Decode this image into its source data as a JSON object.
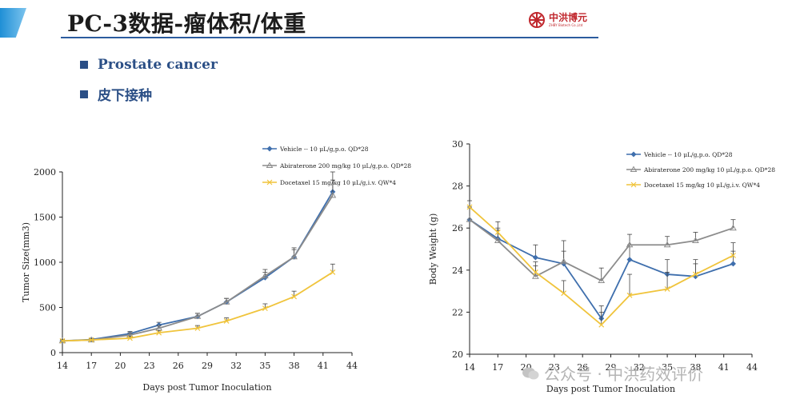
{
  "slide": {
    "title": "PC-3数据-瘤体积/体重",
    "logo_name": "中洪博元",
    "logo_sub": "ZHBY Biotech Co.,Ltd",
    "bullets": [
      "Prostate cancer",
      "皮下接种"
    ],
    "watermark": "公众号 · 中洪药效评价"
  },
  "colors": {
    "vehicle": "#3f6fad",
    "abiraterone": "#8c8c8c",
    "docetaxel": "#f0c43c",
    "title_rule": "#2b5c9e",
    "bullet": "#2b4f86"
  },
  "chart_data": [
    {
      "type": "line",
      "title": "",
      "xlabel": "Days post Tumor Inoculation",
      "ylabel": "Tumor Size(mm3)",
      "xlim": [
        14,
        44
      ],
      "ylim": [
        0,
        2000
      ],
      "xticks": [
        14,
        17,
        20,
        23,
        26,
        29,
        32,
        35,
        38,
        41,
        44
      ],
      "yticks": [
        0,
        500,
        1000,
        1500,
        2000
      ],
      "legend_position": "top-right",
      "series": [
        {
          "name": "Vehicle -- 10 μL/g,p.o. QD*28",
          "key": "vehicle",
          "marker": "diamond",
          "x": [
            14,
            17,
            21,
            24,
            28,
            31,
            35,
            38,
            42
          ],
          "y": [
            130,
            145,
            210,
            305,
            400,
            560,
            830,
            1060,
            1780
          ],
          "err": [
            15,
            15,
            25,
            30,
            35,
            40,
            60,
            80,
            220
          ]
        },
        {
          "name": "Abiraterone 200 mg/kg 10 μL/g,p.o. QD*28",
          "key": "abiraterone",
          "marker": "triangle",
          "x": [
            14,
            17,
            21,
            24,
            28,
            31,
            35,
            38,
            42
          ],
          "y": [
            130,
            140,
            195,
            270,
            400,
            560,
            850,
            1060,
            1740
          ],
          "err": [
            15,
            15,
            25,
            30,
            35,
            40,
            70,
            100,
            170
          ]
        },
        {
          "name": "Docetaxel 15 mg/kg 10 μL/g,i.v. QW*4",
          "key": "docetaxel",
          "marker": "x",
          "x": [
            14,
            17,
            21,
            24,
            28,
            31,
            35,
            38,
            42
          ],
          "y": [
            130,
            140,
            160,
            220,
            270,
            350,
            490,
            620,
            890
          ],
          "err": [
            15,
            15,
            20,
            25,
            30,
            35,
            50,
            60,
            90
          ]
        }
      ]
    },
    {
      "type": "line",
      "title": "",
      "xlabel": "Days post Tumor Inoculation",
      "ylabel": "Body Weight (g)",
      "xlim": [
        14,
        44
      ],
      "ylim": [
        20,
        30
      ],
      "xticks": [
        14,
        17,
        20,
        23,
        26,
        29,
        32,
        35,
        38,
        41,
        44
      ],
      "yticks": [
        20,
        22,
        24,
        26,
        28,
        30
      ],
      "legend_position": "top-right",
      "series": [
        {
          "name": "Vehicle -- 10 μL/g,p.o. QD*28",
          "key": "vehicle",
          "marker": "diamond",
          "x": [
            14,
            17,
            21,
            24,
            28,
            31,
            35,
            38,
            42
          ],
          "y": [
            26.4,
            25.5,
            24.6,
            24.3,
            21.7,
            24.5,
            23.8,
            23.7,
            24.3
          ],
          "err": [
            0.6,
            0.5,
            0.6,
            0.6,
            0.6,
            0.7,
            0.7,
            0.6,
            0.6
          ]
        },
        {
          "name": "Abiraterone 200 mg/kg 10 μL/g,p.o. QD*28",
          "key": "abiraterone",
          "marker": "triangle",
          "x": [
            14,
            17,
            21,
            24,
            28,
            31,
            35,
            38,
            42
          ],
          "y": [
            26.4,
            25.4,
            23.7,
            24.4,
            23.5,
            25.2,
            25.2,
            25.4,
            26.0
          ],
          "err": [
            0.6,
            0.5,
            0.5,
            1.0,
            0.6,
            0.5,
            0.4,
            0.4,
            0.4
          ]
        },
        {
          "name": "Docetaxel 15 mg/kg 10 μL/g,i.v. QW*4",
          "key": "docetaxel",
          "marker": "x",
          "x": [
            14,
            17,
            21,
            24,
            28,
            31,
            35,
            38,
            42
          ],
          "y": [
            27.0,
            25.8,
            23.9,
            22.9,
            21.4,
            22.8,
            23.1,
            23.8,
            24.7
          ],
          "err": [
            0.3,
            0.5,
            0.5,
            0.6,
            0.6,
            1.0,
            0.8,
            0.7,
            0.6
          ]
        }
      ]
    }
  ]
}
